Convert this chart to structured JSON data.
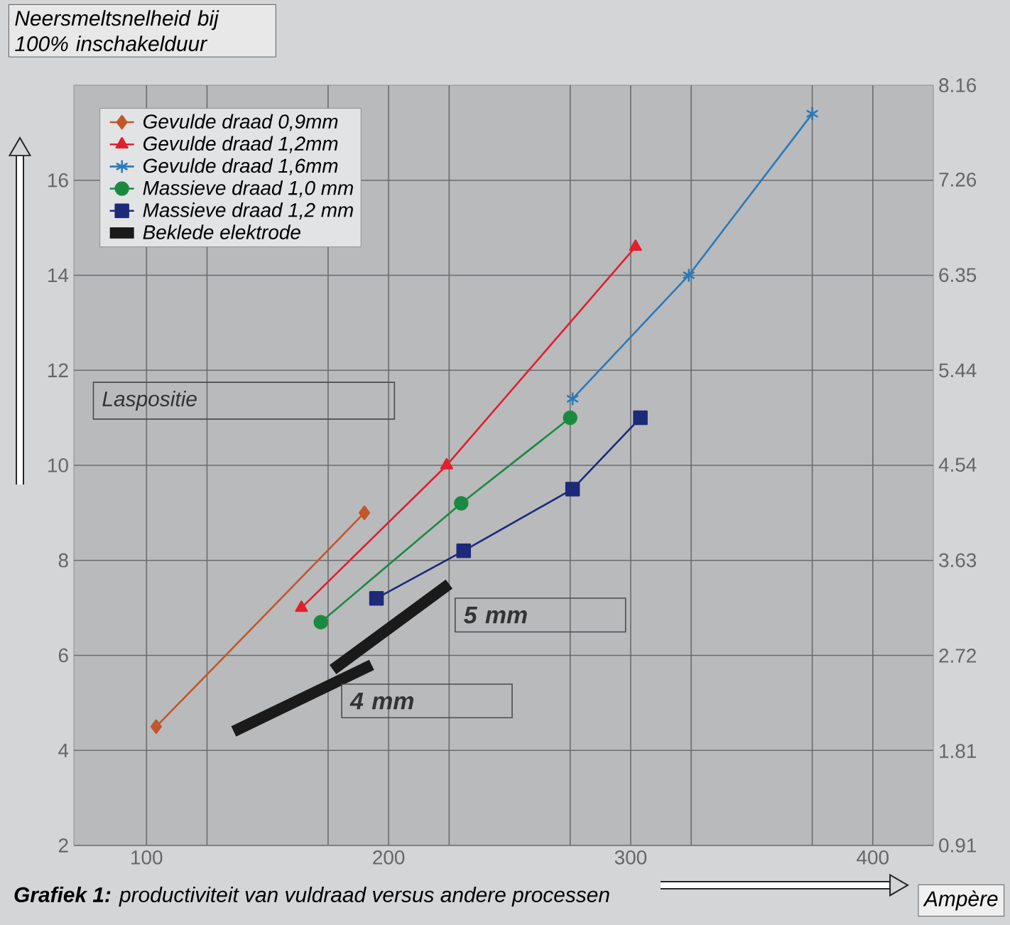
{
  "chart_data": {
    "type": "line",
    "title": "**Grafiek 1:** productiviteit van vuldraad versus andere processen",
    "xlabel": "Ampère",
    "ylabel": "Neersmeltsnelheid bij 100% inschakelduur",
    "xlim": [
      70,
      425
    ],
    "xticks": [
      100,
      {
        "value": 125,
        "label": null
      },
      {
        "value": 175,
        "label": null
      },
      200,
      {
        "value": 225,
        "label": null
      },
      {
        "value": 275,
        "label": null
      },
      300,
      {
        "value": 325,
        "label": null
      },
      {
        "value": 375,
        "label": null
      },
      400
    ],
    "ylim": [
      2,
      18
    ],
    "yticks": [
      2,
      4,
      6,
      8,
      10,
      12,
      14,
      16
    ],
    "y2lim": [
      0.91,
      8.16
    ],
    "y2ticks": [
      0.91,
      1.81,
      2.72,
      3.63,
      4.54,
      5.44,
      6.35,
      7.26,
      8.16
    ],
    "grid": true,
    "legend": "top left",
    "series": [
      {
        "name": "Gevulde draad 0,9mm",
        "color": "#c0582a",
        "marker": "diamond",
        "x": [
          104,
          190
        ],
        "values": [
          4.5,
          9.0
        ]
      },
      {
        "name": "Gevulde draad 1,2mm",
        "color": "#e0202e",
        "marker": "triangle",
        "x": [
          164,
          224,
          302
        ],
        "values": [
          7.0,
          10.0,
          14.6
        ]
      },
      {
        "name": "Gevulde draad 1,6mm",
        "color": "#2a7ab8",
        "marker": "cross",
        "x": [
          276,
          324,
          375
        ],
        "values": [
          11.4,
          14.0,
          17.4
        ]
      },
      {
        "name": "Massieve draad 1,0 mm",
        "color": "#1a8a40",
        "marker": "circle",
        "x": [
          172,
          230,
          275
        ],
        "values": [
          6.7,
          9.2,
          11.0
        ]
      },
      {
        "name": "Massieve draad 1,2 mm",
        "color": "#1c2a7a",
        "marker": "square",
        "x": [
          195,
          231,
          276,
          304
        ],
        "values": [
          7.2,
          8.2,
          9.5,
          11.0
        ]
      },
      {
        "name": "Beklede elektrode",
        "color": "#1a1a1a",
        "marker": "none",
        "x": [
          136,
          193
        ],
        "values": [
          4.4,
          5.8
        ]
      },
      {
        "color": "#1a1a1a",
        "marker": "none",
        "x": [
          177,
          225
        ],
        "values": [
          5.7,
          7.5
        ]
      }
    ],
    "annotations": [
      "Laspositie",
      "5 mm",
      "4 mm"
    ]
  }
}
